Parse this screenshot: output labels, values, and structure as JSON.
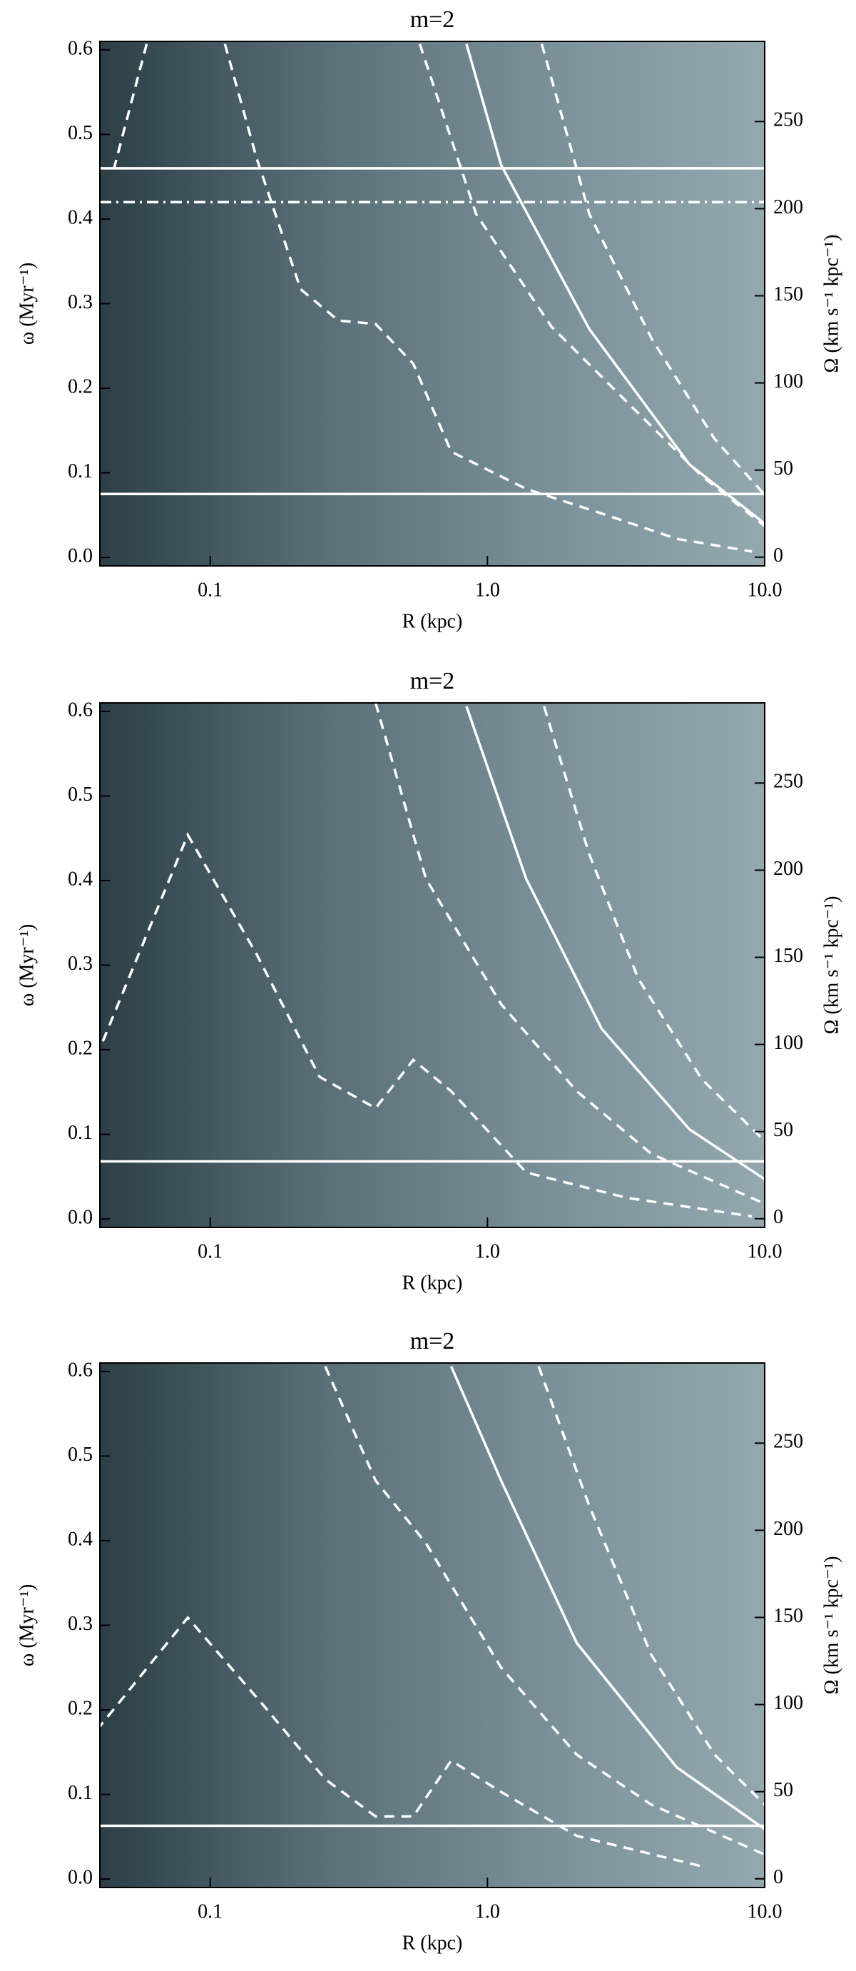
{
  "chart_data": [
    {
      "type": "spectrogram",
      "title": "m=2",
      "xlabel": "R (kpc)",
      "ylabel": "ω (Myr⁻¹)",
      "y2label": "Ω (km s⁻¹ kpc⁻¹)",
      "xscale": "log",
      "xlim": [
        0.04,
        10
      ],
      "xticks": [
        0.1,
        {
          "value": 1,
          "label": "1.0"
        },
        {
          "value": 10,
          "label": "10.0"
        }
      ],
      "ylim": [
        -0.01,
        0.61
      ],
      "yticks": [
        {
          "value": 0,
          "label": "0.0"
        },
        0.1,
        0.2,
        0.3,
        0.4,
        0.5,
        0.6
      ],
      "y2lim": [
        -5,
        296
      ],
      "y2ticks": [
        0,
        50,
        100,
        150,
        200,
        250
      ],
      "series": [
        {
          "style": "solid",
          "color": "#ffffff",
          "x": [
            0.04,
            10
          ],
          "values": [
            0.075,
            0.075
          ]
        },
        {
          "style": "solid",
          "color": "#ffffff",
          "x": [
            0.04,
            10
          ],
          "values": [
            0.46,
            0.46
          ]
        },
        {
          "style": "dashdot",
          "color": "#ffffff",
          "x": [
            0.04,
            10
          ],
          "values": [
            0.42,
            0.42
          ]
        },
        {
          "style": "dashed",
          "color": "#ffffff",
          "x": [
            0.059,
            0.045
          ],
          "values": [
            0.607,
            0.46
          ]
        },
        {
          "style": "dashed",
          "color": "#ffffff",
          "x": [
            0.113,
            0.147,
            0.212,
            0.29,
            0.395,
            0.54,
            0.74,
            1.38,
            2.58,
            4.82,
            9.0
          ],
          "values": [
            0.607,
            0.472,
            0.317,
            0.28,
            0.276,
            0.229,
            0.125,
            0.081,
            0.052,
            0.022,
            0.007
          ]
        },
        {
          "style": "dashed",
          "color": "#ffffff",
          "x": [
            0.57,
            0.91,
            1.7,
            3.18,
            5.94,
            10
          ],
          "values": [
            0.607,
            0.406,
            0.273,
            0.184,
            0.096,
            0.037
          ]
        },
        {
          "style": "solid",
          "color": "#ffffff",
          "x": [
            0.84,
            1.12,
            2.33,
            5.35,
            10
          ],
          "values": [
            0.607,
            0.464,
            0.27,
            0.11,
            0.04
          ]
        },
        {
          "style": "dashed",
          "color": "#ffffff",
          "x": [
            1.57,
            2.33,
            3.92,
            6.6,
            10
          ],
          "values": [
            0.607,
            0.406,
            0.258,
            0.14,
            0.074
          ]
        }
      ]
    },
    {
      "type": "spectrogram",
      "title": "m=2",
      "xlabel": "R (kpc)",
      "ylabel": "ω (Myr⁻¹)",
      "y2label": "Ω (km s⁻¹ kpc⁻¹)",
      "xscale": "log",
      "xlim": [
        0.04,
        10
      ],
      "xticks": [
        0.1,
        {
          "value": 1,
          "label": "1.0"
        },
        {
          "value": 10,
          "label": "10.0"
        }
      ],
      "ylim": [
        -0.01,
        0.61
      ],
      "yticks": [
        {
          "value": 0,
          "label": "0.0"
        },
        0.1,
        0.2,
        0.3,
        0.4,
        0.5,
        0.6
      ],
      "y2lim": [
        -5,
        296
      ],
      "y2ticks": [
        0,
        50,
        100,
        150,
        200,
        250
      ],
      "series": [
        {
          "style": "solid",
          "color": "#ffffff",
          "x": [
            0.04,
            10
          ],
          "values": [
            0.068,
            0.068
          ]
        },
        {
          "style": "dashed",
          "color": "#ffffff",
          "x": [
            0.041,
            0.083,
            0.147,
            0.248,
            0.395,
            0.54,
            0.74,
            1.38,
            3.18,
            9.0
          ],
          "values": [
            0.21,
            0.454,
            0.313,
            0.168,
            0.131,
            0.188,
            0.151,
            0.055,
            0.025,
            0.003
          ]
        },
        {
          "style": "dashed",
          "color": "#ffffff",
          "x": [
            0.395,
            0.6,
            1.12,
            2.1,
            3.9,
            10
          ],
          "values": [
            0.61,
            0.402,
            0.254,
            0.151,
            0.077,
            0.018
          ]
        },
        {
          "style": "solid",
          "color": "#ffffff",
          "x": [
            0.84,
            1.38,
            2.58,
            5.35,
            10
          ],
          "values": [
            0.606,
            0.402,
            0.225,
            0.106,
            0.047
          ]
        },
        {
          "style": "dashed",
          "color": "#ffffff",
          "x": [
            1.6,
            2.33,
            3.5,
            5.94,
            10
          ],
          "values": [
            0.606,
            0.431,
            0.284,
            0.165,
            0.092
          ]
        }
      ]
    },
    {
      "type": "spectrogram",
      "title": "m=2",
      "xlabel": "R (kpc)",
      "ylabel": "ω (Myr⁻¹)",
      "y2label": "Ω (km s⁻¹ kpc⁻¹)",
      "xscale": "log",
      "xlim": [
        0.04,
        10
      ],
      "xticks": [
        0.1,
        {
          "value": 1,
          "label": "1.0"
        },
        {
          "value": 10,
          "label": "10.0"
        }
      ],
      "ylim": [
        -0.01,
        0.61
      ],
      "yticks": [
        {
          "value": 0,
          "label": "0.0"
        },
        0.1,
        0.2,
        0.3,
        0.4,
        0.5,
        0.6
      ],
      "y2lim": [
        -5,
        296
      ],
      "y2ticks": [
        0,
        50,
        100,
        150,
        200,
        250
      ],
      "series": [
        {
          "style": "solid",
          "color": "#ffffff",
          "x": [
            0.04,
            10
          ],
          "values": [
            0.063,
            0.063
          ]
        },
        {
          "style": "dashed",
          "color": "#ffffff",
          "x": [
            0.039,
            0.083,
            0.155,
            0.26,
            0.395,
            0.54,
            0.74,
            1.12,
            2.1,
            5.94
          ],
          "values": [
            0.176,
            0.309,
            0.206,
            0.118,
            0.074,
            0.074,
            0.14,
            0.103,
            0.051,
            0.015
          ]
        },
        {
          "style": "dashed",
          "color": "#ffffff",
          "x": [
            0.26,
            0.395,
            0.6,
            1.12,
            2.1,
            3.9,
            10
          ],
          "values": [
            0.606,
            0.471,
            0.397,
            0.25,
            0.147,
            0.088,
            0.029
          ]
        },
        {
          "style": "solid",
          "color": "#ffffff",
          "x": [
            0.74,
            1.12,
            2.1,
            4.82,
            10
          ],
          "values": [
            0.606,
            0.471,
            0.279,
            0.132,
            0.059
          ]
        },
        {
          "style": "dashed",
          "color": "#ffffff",
          "x": [
            1.53,
            2.33,
            3.9,
            6.6,
            10
          ],
          "values": [
            0.606,
            0.441,
            0.265,
            0.147,
            0.088
          ]
        }
      ]
    }
  ]
}
